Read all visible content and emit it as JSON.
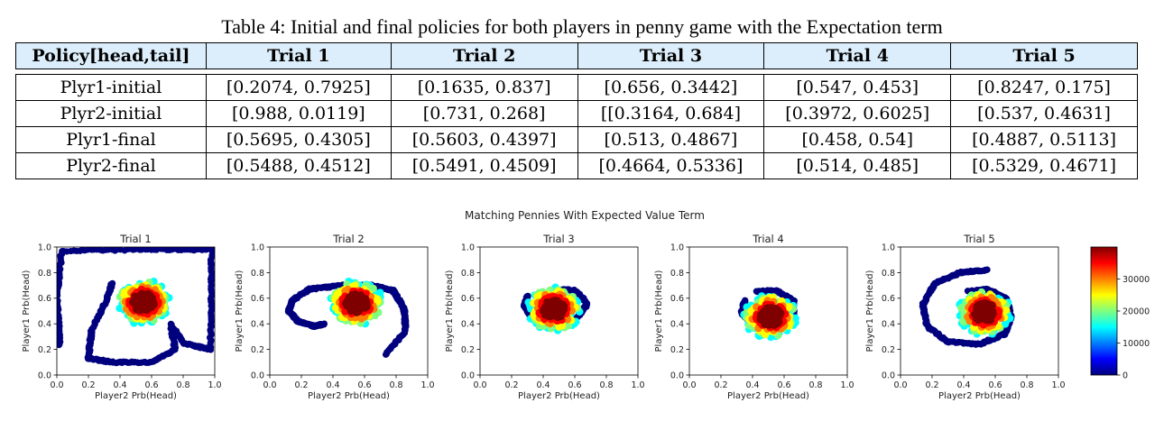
{
  "caption": "Table 4: Initial and final policies for both players in penny game with the Expectation term",
  "table": {
    "headers": [
      "Policy[head,tail]",
      "Trial 1",
      "Trial 2",
      "Trial 3",
      "Trial 4",
      "Trial 5"
    ],
    "rows": [
      [
        "Plyr1-initial",
        "[0.2074, 0.7925]",
        "[0.1635, 0.837]",
        "[0.656, 0.3442]",
        "[0.547, 0.453]",
        "[0.8247, 0.175]"
      ],
      [
        "Plyr2-initial",
        "[0.988, 0.0119]",
        "[0.731, 0.268]",
        "[[0.3164, 0.684]",
        "[0.3972, 0.6025]",
        "[0.537, 0.4631]"
      ],
      [
        "Plyr1-final",
        "[0.5695, 0.4305]",
        "[0.5603, 0.4397]",
        "[0.513, 0.4867]",
        "[0.458, 0.54]",
        "[0.4887, 0.5113]"
      ],
      [
        "Plyr2-final",
        "[0.5488, 0.4512]",
        "[0.5491, 0.4509]",
        "[0.4664, 0.5336]",
        "[0.514, 0.485]",
        "[0.5329, 0.4671]"
      ]
    ]
  },
  "figure": {
    "title": "Matching Pennies With Expected Value Term"
  },
  "chart_data": [
    {
      "type": "scatter",
      "title": "Trial 1",
      "xlabel": "Player2 Prb(Head)",
      "ylabel": "Player1 Prb(Head)",
      "xlim": [
        0,
        1
      ],
      "ylim": [
        0,
        1
      ],
      "xticks": [
        "0.0",
        "0.2",
        "0.4",
        "0.6",
        "0.8",
        "1.0"
      ],
      "yticks": [
        "0.0",
        "0.2",
        "0.4",
        "0.6",
        "0.8",
        "1.0"
      ],
      "start": [
        0.988,
        0.2074
      ],
      "end": [
        0.5488,
        0.5695
      ],
      "shape": "square-spiral"
    },
    {
      "type": "scatter",
      "title": "Trial 2",
      "xlabel": "Player2 Prb(Head)",
      "ylabel": "Player1 Prb(Head)",
      "xlim": [
        0,
        1
      ],
      "ylim": [
        0,
        1
      ],
      "xticks": [
        "0.0",
        "0.2",
        "0.4",
        "0.6",
        "0.8",
        "1.0"
      ],
      "yticks": [
        "0.0",
        "0.2",
        "0.4",
        "0.6",
        "0.8",
        "1.0"
      ],
      "start": [
        0.731,
        0.1635
      ],
      "end": [
        0.5491,
        0.5603
      ],
      "shape": "spiral"
    },
    {
      "type": "scatter",
      "title": "Trial 3",
      "xlabel": "Player2 Prb(Head)",
      "ylabel": "Player1 Prb(Head)",
      "xlim": [
        0,
        1
      ],
      "ylim": [
        0,
        1
      ],
      "xticks": [
        "0.0",
        "0.2",
        "0.4",
        "0.6",
        "0.8",
        "1.0"
      ],
      "yticks": [
        "0.0",
        "0.2",
        "0.4",
        "0.6",
        "0.8",
        "1.0"
      ],
      "start": [
        0.3164,
        0.656
      ],
      "end": [
        0.4664,
        0.513
      ],
      "shape": "blob"
    },
    {
      "type": "scatter",
      "title": "Trial 4",
      "xlabel": "Player2 Prb(Head)",
      "ylabel": "Player1 Prb(Head)",
      "xlim": [
        0,
        1
      ],
      "ylim": [
        0,
        1
      ],
      "xticks": [
        "0.0",
        "0.2",
        "0.4",
        "0.6",
        "0.8",
        "1.0"
      ],
      "yticks": [
        "0.0",
        "0.2",
        "0.4",
        "0.6",
        "0.8",
        "1.0"
      ],
      "start": [
        0.3972,
        0.547
      ],
      "end": [
        0.514,
        0.458
      ],
      "shape": "blob"
    },
    {
      "type": "scatter",
      "title": "Trial 5",
      "xlabel": "Player2 Prb(Head)",
      "ylabel": "Player1 Prb(Head)",
      "xlim": [
        0,
        1
      ],
      "ylim": [
        0,
        1
      ],
      "xticks": [
        "0.0",
        "0.2",
        "0.4",
        "0.6",
        "0.8",
        "1.0"
      ],
      "yticks": [
        "0.0",
        "0.2",
        "0.4",
        "0.6",
        "0.8",
        "1.0"
      ],
      "start": [
        0.537,
        0.8247
      ],
      "end": [
        0.5329,
        0.4887
      ],
      "shape": "spiral"
    },
    {
      "type": "colorbar",
      "range": [
        0,
        40000
      ],
      "ticks": [
        "0",
        "10000",
        "20000",
        "30000"
      ],
      "colormap": [
        "#00007f",
        "#0000ff",
        "#007fff",
        "#00ffff",
        "#7fff7f",
        "#ffff00",
        "#ff7f00",
        "#ff0000",
        "#7f0000"
      ]
    }
  ]
}
